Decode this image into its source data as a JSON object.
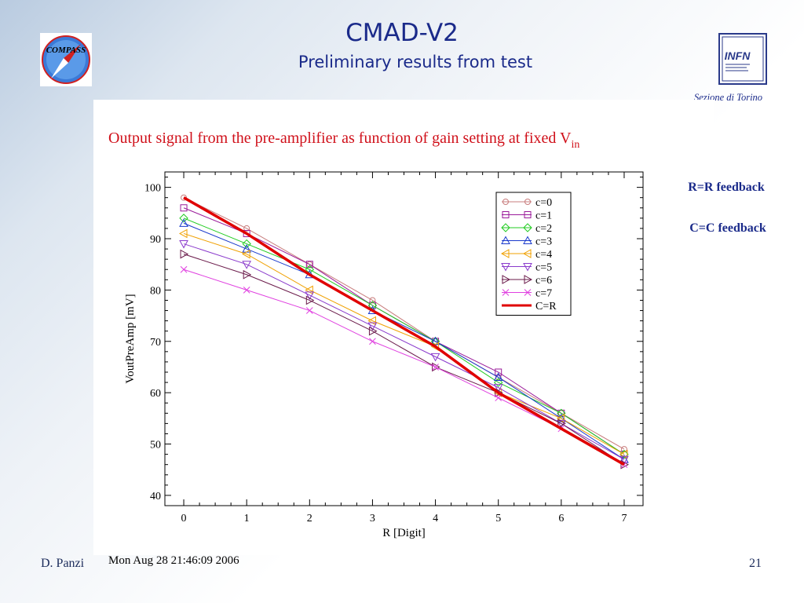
{
  "slide": {
    "title": "CMAD-V2",
    "subtitle": "Preliminary results from test",
    "left_logo_text": "COMPASS",
    "right_logo_text": "INFN",
    "right_logo_caption": "Sezione di Torino",
    "output_title": "Output signal from the pre-amplifier as function of gain setting at fixed V",
    "output_title_sub": "in",
    "note_r": "R=R feedback",
    "note_c": "C=C feedback",
    "author": "D. Panzi",
    "page_number": "21",
    "timestamp": "Mon Aug 28 21:46:09 2006"
  },
  "chart_data": {
    "type": "line",
    "xlabel": "R [Digit]",
    "ylabel": "VoutPreAmp [mV]",
    "xlim": [
      -0.3,
      7.3
    ],
    "ylim": [
      38,
      103
    ],
    "x": [
      0,
      1,
      2,
      3,
      4,
      5,
      6,
      7
    ],
    "xticks": [
      0,
      1,
      2,
      3,
      4,
      5,
      6,
      7
    ],
    "yticks": [
      40,
      50,
      60,
      70,
      80,
      90,
      100
    ],
    "grid": false,
    "legend": "top-right",
    "series": [
      {
        "name": "c=0",
        "color": "#c87c7c",
        "marker": "circle",
        "values": [
          98,
          92,
          85,
          78,
          70,
          63,
          56,
          49
        ]
      },
      {
        "name": "c=1",
        "color": "#9a1a9a",
        "marker": "square",
        "values": [
          96,
          91,
          85,
          77,
          70,
          64,
          56,
          48
        ]
      },
      {
        "name": "c=2",
        "color": "#22cc22",
        "marker": "diamond",
        "values": [
          94,
          89,
          84,
          77,
          70,
          62,
          56,
          48
        ]
      },
      {
        "name": "c=3",
        "color": "#1a3acc",
        "marker": "triangle-up",
        "values": [
          93,
          88,
          83,
          76,
          70,
          63,
          55,
          47
        ]
      },
      {
        "name": "c=4",
        "color": "#f0a000",
        "marker": "triangle-left",
        "values": [
          91,
          87,
          80,
          74,
          69,
          60,
          55,
          48
        ]
      },
      {
        "name": "c=5",
        "color": "#8a3acc",
        "marker": "triangle-down",
        "values": [
          89,
          85,
          79,
          73,
          67,
          61,
          54,
          47
        ]
      },
      {
        "name": "c=6",
        "color": "#6a1a4a",
        "marker": "triangle-right",
        "values": [
          87,
          83,
          78,
          72,
          65,
          60,
          54,
          46
        ]
      },
      {
        "name": "c=7",
        "color": "#e040e0",
        "marker": "x",
        "values": [
          84,
          80,
          76,
          70,
          65,
          59,
          53,
          46
        ]
      },
      {
        "name": "C=R",
        "color": "#e00000",
        "marker": "none",
        "values": [
          98,
          91,
          83,
          76,
          69,
          60,
          53,
          46
        ]
      }
    ]
  }
}
